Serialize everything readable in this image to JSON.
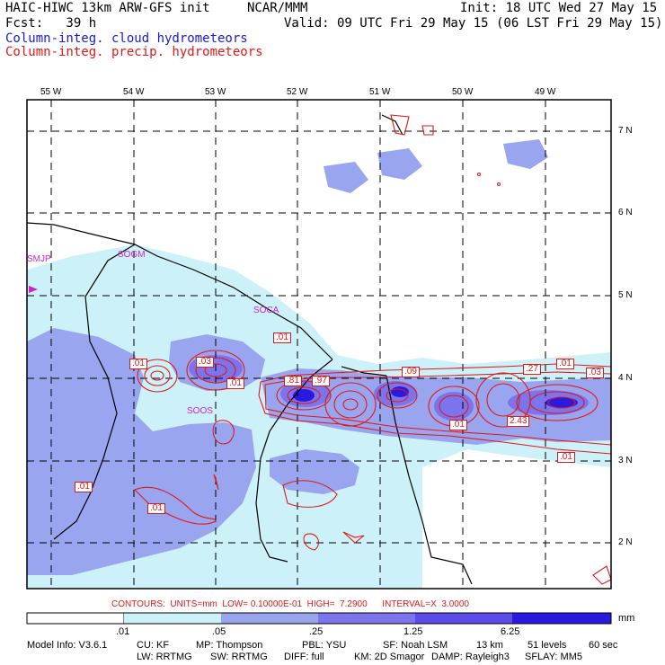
{
  "header": {
    "title_left": "HAIC-HIWC 13km ARW-GFS init",
    "title_mid": "NCAR/MMM",
    "init": "Init: 18 UTC Wed 27 May 15",
    "fcst": "Fcst:   39 h",
    "valid": "Valid: 09 UTC Fri 29 May 15 (06 LST Fri 29 May 15)",
    "legend_cloud": "Column-integ. cloud hydrometeors",
    "legend_precip": "Column-integ. precip. hydrometeors"
  },
  "axes": {
    "lon_labels": [
      "55 W",
      "54 W",
      "53 W",
      "52 W",
      "51 W",
      "50 W",
      "49 W"
    ],
    "lat_labels": [
      "7 N",
      "6 N",
      "5 N",
      "4 N",
      "3 N",
      "2 N"
    ]
  },
  "stations": [
    "SMJP",
    "SOGM",
    "SOCA",
    "SOOS"
  ],
  "contour_labels": [
    ".01",
    ".03",
    ".01",
    ".01",
    ".81",
    ".97",
    ".09",
    ".27",
    ".01",
    ".03",
    "2.43",
    ".01",
    ".01",
    ".01",
    ".01"
  ],
  "contour_info": "CONTOURS:  UNITS=mm  LOW= 0.10000E-01  HIGH=  7.2900      INTERVAL=X  3.0000",
  "colorbar": {
    "labels": [
      ".01",
      ".05",
      ".25",
      "1.25",
      "6.25"
    ],
    "units": "mm",
    "colors": [
      "#ffffff",
      "#cdf1f8",
      "#9aa5f0",
      "#7b74ec",
      "#5c4de8",
      "#2a1ae0"
    ]
  },
  "footer": {
    "line1": [
      "Model Info: V3.6.1",
      "CU: KF",
      "MP: Thompson",
      "PBL: YSU",
      "SF: Noah LSM",
      "13 km",
      "51 levels",
      "60 sec"
    ],
    "line2": [
      "LW: RRTMG",
      "SW: RRTMG",
      "DIFF: full",
      "KM: 2D Smagor",
      "DAMP: Rayleigh3",
      "SFLAY: MM5"
    ]
  }
}
